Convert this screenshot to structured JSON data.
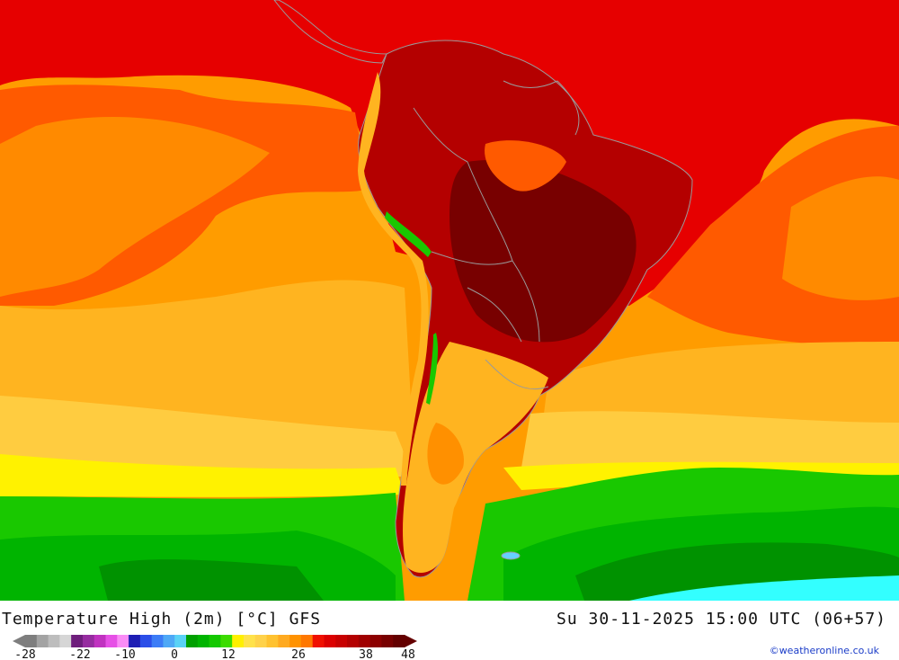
{
  "map": {
    "product": "Temperature High (2m) [°C] GFS",
    "valid_time": "Su 30-11-2025 15:00 UTC (06+57)",
    "credit": "©weatheronline.co.uk",
    "region": "South America",
    "colors": {
      "deep_red": "#8a0000",
      "red": "#e60000",
      "orange_red": "#ff4a00",
      "orange": "#ff9c00",
      "amber": "#ffb420",
      "yellow_orange": "#ffc83a",
      "yellow": "#fff200",
      "light_green": "#19c800",
      "green": "#00b400",
      "dark_green": "#009200",
      "cyan": "#33ffff",
      "border": "#9a9a9a"
    }
  },
  "legend": {
    "tick_labels": [
      "-28",
      "-22",
      "-10",
      "0",
      "12",
      "26",
      "38",
      "48"
    ],
    "colors": [
      "#7e7e7e",
      "#a3a3a3",
      "#bdbdbd",
      "#d6d6d6",
      "#6e1e7c",
      "#962ca0",
      "#c032c0",
      "#e650e6",
      "#fa8cf6",
      "#1e1eb4",
      "#2b4ee8",
      "#3c7cf6",
      "#4ea8f6",
      "#5ad2f6",
      "#00a000",
      "#00b400",
      "#14c800",
      "#3cdc00",
      "#fff000",
      "#ffe24a",
      "#ffd24a",
      "#ffc230",
      "#ffaa20",
      "#ff9200",
      "#ff7800",
      "#f01000",
      "#dc0000",
      "#c80000",
      "#b40000",
      "#a00000",
      "#8c0000",
      "#780000",
      "#640000"
    ]
  }
}
